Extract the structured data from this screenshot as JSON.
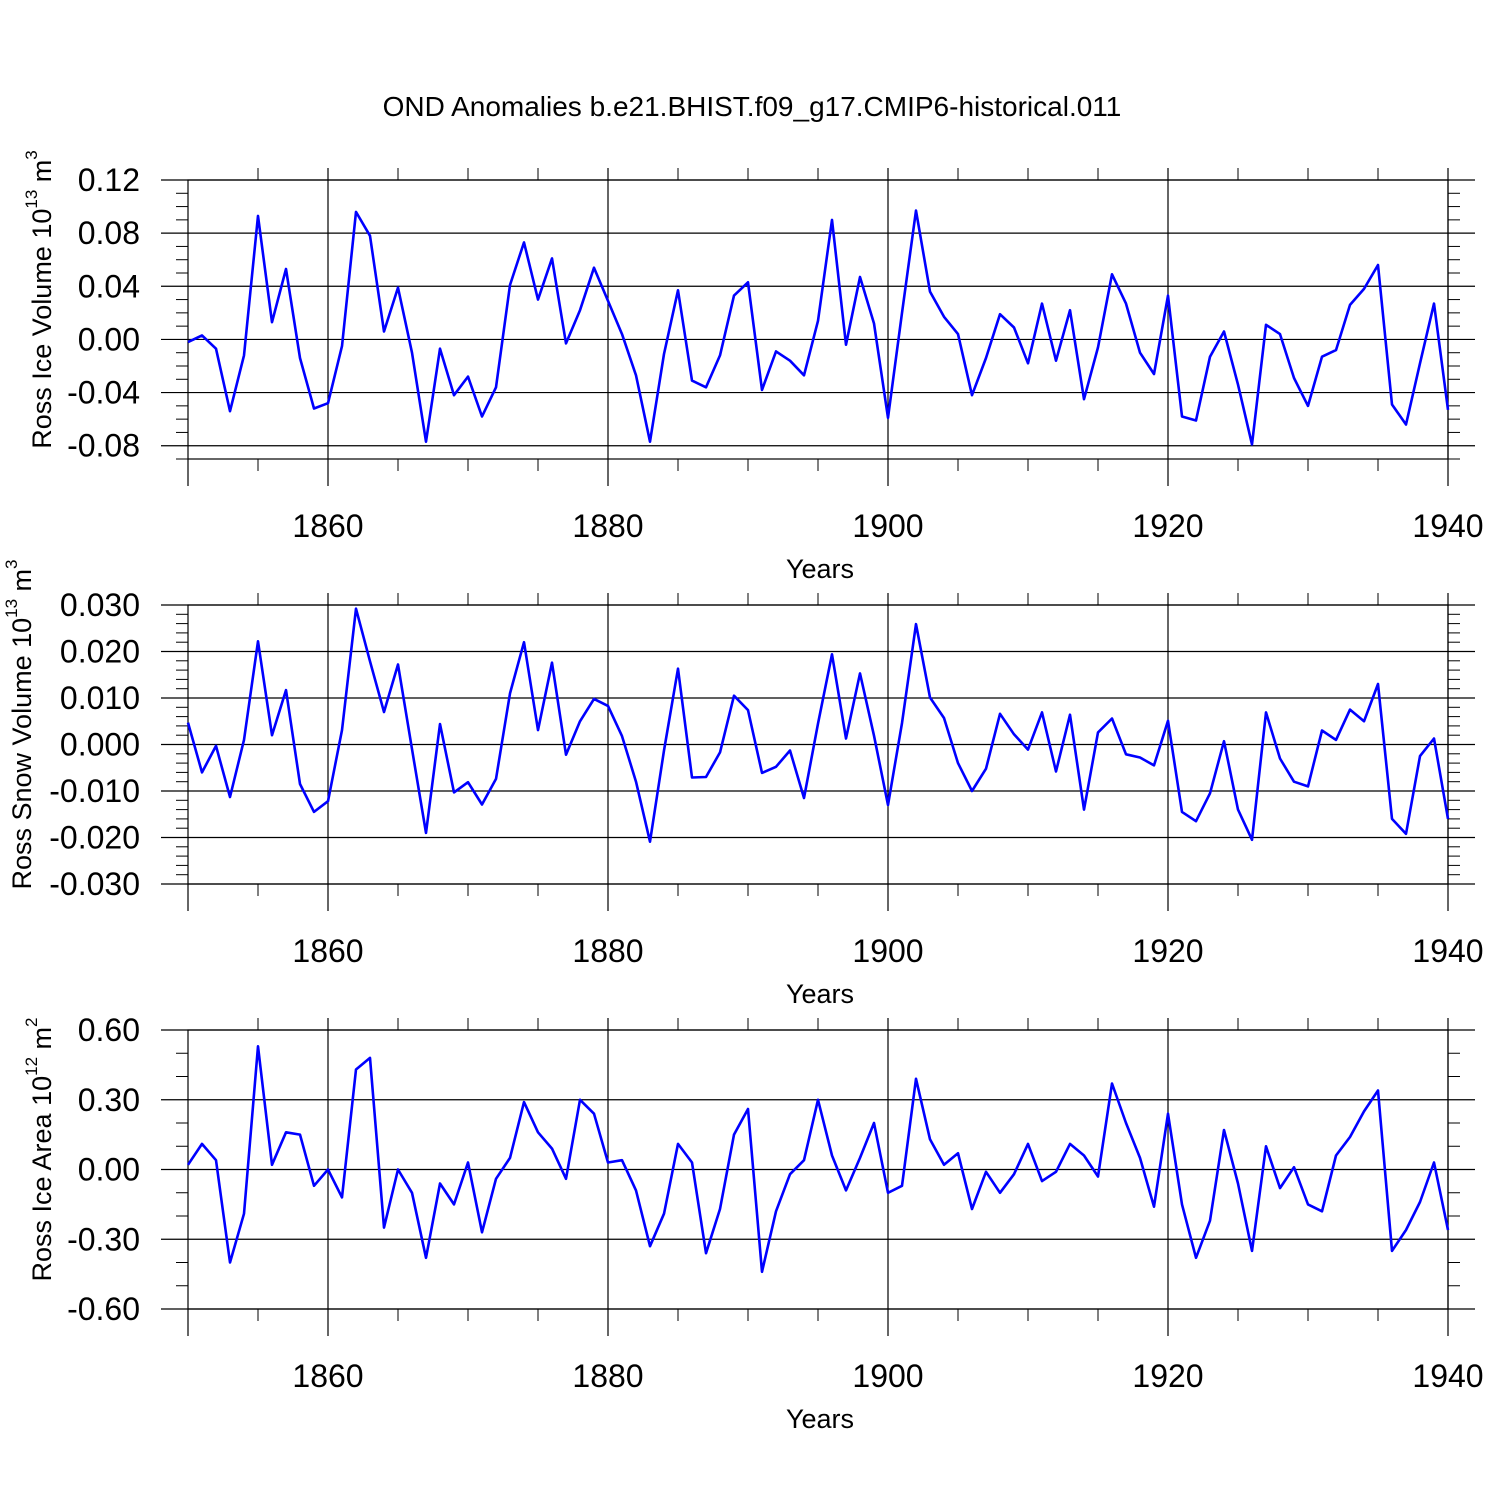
{
  "figure_title": "OND Anomalies b.e21.BHIST.f09_g17.CMIP6-historical.011",
  "chart_data": [
    {
      "type": "line",
      "name": "ice-volume",
      "ylabel": "Ross Ice Volume 10",
      "ylabel_exp": "13",
      "ylabel_unit": " m",
      "ylabel_unit_exp": "3",
      "xlabel": "Years",
      "xlim": [
        1850,
        1940
      ],
      "ylim": [
        -0.09,
        0.12
      ],
      "yticks": [
        -0.08,
        -0.04,
        0.0,
        0.04,
        0.08,
        0.12
      ],
      "ytick_labels": [
        "-0.08",
        "-0.04",
        "0.00",
        "0.04",
        "0.08",
        "0.12"
      ],
      "yminor_step": 0.01,
      "xticks": [
        1860,
        1880,
        1900,
        1920,
        1940
      ],
      "xtick_labels": [
        "1860",
        "1880",
        "1900",
        "1920",
        "1940"
      ],
      "color": "#0000ff",
      "x": [
        1850,
        1851,
        1852,
        1853,
        1854,
        1855,
        1856,
        1857,
        1858,
        1859,
        1860,
        1861,
        1862,
        1863,
        1864,
        1865,
        1866,
        1867,
        1868,
        1869,
        1870,
        1871,
        1872,
        1873,
        1874,
        1875,
        1876,
        1877,
        1878,
        1879,
        1880,
        1881,
        1882,
        1883,
        1884,
        1885,
        1886,
        1887,
        1888,
        1889,
        1890,
        1891,
        1892,
        1893,
        1894,
        1895,
        1896,
        1897,
        1898,
        1899,
        1900,
        1901,
        1902,
        1903,
        1904,
        1905,
        1906,
        1907,
        1908,
        1909,
        1910,
        1911,
        1912,
        1913,
        1914,
        1915,
        1916,
        1917,
        1918,
        1919,
        1920,
        1921,
        1922,
        1923,
        1924,
        1925,
        1926,
        1927,
        1928,
        1929,
        1930,
        1931,
        1932,
        1933,
        1934,
        1935,
        1936,
        1937,
        1938,
        1939,
        1940
      ],
      "values": [
        -0.002,
        0.003,
        -0.007,
        -0.054,
        -0.012,
        0.093,
        0.013,
        0.053,
        -0.014,
        -0.052,
        -0.048,
        -0.005,
        0.096,
        0.078,
        0.006,
        0.039,
        -0.01,
        -0.077,
        -0.007,
        -0.042,
        -0.028,
        -0.058,
        -0.036,
        0.041,
        0.073,
        0.03,
        0.061,
        -0.003,
        0.022,
        0.054,
        0.029,
        0.004,
        -0.027,
        -0.077,
        -0.011,
        0.037,
        -0.031,
        -0.036,
        -0.012,
        0.033,
        0.043,
        -0.038,
        -0.009,
        -0.016,
        -0.027,
        0.014,
        0.09,
        -0.004,
        0.047,
        0.012,
        -0.059,
        0.02,
        0.097,
        0.036,
        0.017,
        0.004,
        -0.042,
        -0.014,
        0.019,
        0.009,
        -0.018,
        0.027,
        -0.016,
        0.022,
        -0.045,
        -0.006,
        0.049,
        0.027,
        -0.01,
        -0.026,
        0.033,
        -0.058,
        -0.061,
        -0.013,
        0.006,
        -0.034,
        -0.079,
        0.011,
        0.004,
        -0.029,
        -0.05,
        -0.013,
        -0.008,
        0.026,
        0.038,
        0.056,
        -0.049,
        -0.064,
        -0.018,
        0.027,
        -0.053
      ]
    },
    {
      "type": "line",
      "name": "snow-volume",
      "ylabel": "Ross Snow Volume 10",
      "ylabel_exp": "13",
      "ylabel_unit": " m",
      "ylabel_unit_exp": "3",
      "xlabel": "Years",
      "xlim": [
        1850,
        1940
      ],
      "ylim": [
        -0.03,
        0.03
      ],
      "yticks": [
        -0.03,
        -0.02,
        -0.01,
        0.0,
        0.01,
        0.02,
        0.03
      ],
      "ytick_labels": [
        "-0.030",
        "-0.020",
        "-0.010",
        "0.000",
        "0.010",
        "0.020",
        "0.030"
      ],
      "yminor_step": 0.002,
      "xticks": [
        1860,
        1880,
        1900,
        1920,
        1940
      ],
      "xtick_labels": [
        "1860",
        "1880",
        "1900",
        "1920",
        "1940"
      ],
      "color": "#0000ff",
      "x": [
        1850,
        1851,
        1852,
        1853,
        1854,
        1855,
        1856,
        1857,
        1858,
        1859,
        1860,
        1861,
        1862,
        1863,
        1864,
        1865,
        1866,
        1867,
        1868,
        1869,
        1870,
        1871,
        1872,
        1873,
        1874,
        1875,
        1876,
        1877,
        1878,
        1879,
        1880,
        1881,
        1882,
        1883,
        1884,
        1885,
        1886,
        1887,
        1888,
        1889,
        1890,
        1891,
        1892,
        1893,
        1894,
        1895,
        1896,
        1897,
        1898,
        1899,
        1900,
        1901,
        1902,
        1903,
        1904,
        1905,
        1906,
        1907,
        1908,
        1909,
        1910,
        1911,
        1912,
        1913,
        1914,
        1915,
        1916,
        1917,
        1918,
        1919,
        1920,
        1921,
        1922,
        1923,
        1924,
        1925,
        1926,
        1927,
        1928,
        1929,
        1930,
        1931,
        1932,
        1933,
        1934,
        1935,
        1936,
        1937,
        1938,
        1939,
        1940
      ],
      "values": [
        0.0047,
        -0.006,
        -0.0003,
        -0.0113,
        0.001,
        0.0222,
        0.002,
        0.0117,
        -0.0085,
        -0.0145,
        -0.0122,
        0.0031,
        0.0292,
        0.0179,
        0.007,
        0.0172,
        -0.001,
        -0.019,
        0.0044,
        -0.0103,
        -0.0081,
        -0.0129,
        -0.0074,
        0.011,
        0.022,
        0.0031,
        0.0176,
        -0.0022,
        0.005,
        0.0098,
        0.0083,
        0.0018,
        -0.008,
        -0.0209,
        -0.0013,
        0.0163,
        -0.0071,
        -0.007,
        -0.0017,
        0.0105,
        0.0074,
        -0.0061,
        -0.0048,
        -0.0013,
        -0.0115,
        0.0045,
        0.0194,
        0.0013,
        0.0153,
        0.0019,
        -0.013,
        0.0046,
        0.0259,
        0.0101,
        0.0057,
        -0.004,
        -0.01,
        -0.0052,
        0.0066,
        0.0022,
        -0.0011,
        0.0069,
        -0.0058,
        0.0064,
        -0.014,
        0.0026,
        0.0056,
        -0.0021,
        -0.0028,
        -0.0045,
        0.0051,
        -0.0145,
        -0.0165,
        -0.0105,
        0.0007,
        -0.014,
        -0.0205,
        0.0069,
        -0.003,
        -0.008,
        -0.009,
        0.003,
        0.001,
        0.0075,
        0.005,
        0.013,
        -0.016,
        -0.0192,
        -0.0025,
        0.0013,
        -0.016
      ]
    },
    {
      "type": "line",
      "name": "ice-area",
      "ylabel": "Ross Ice Area 10",
      "ylabel_exp": "12",
      "ylabel_unit": " m",
      "ylabel_unit_exp": "2",
      "xlabel": "Years",
      "xlim": [
        1850,
        1940
      ],
      "ylim": [
        -0.6,
        0.6
      ],
      "yticks": [
        -0.6,
        -0.3,
        0.0,
        0.3,
        0.6
      ],
      "ytick_labels": [
        "-0.60",
        "-0.30",
        "0.00",
        "0.30",
        "0.60"
      ],
      "yminor_step": 0.1,
      "xticks": [
        1860,
        1880,
        1900,
        1920,
        1940
      ],
      "xtick_labels": [
        "1860",
        "1880",
        "1900",
        "1920",
        "1940"
      ],
      "color": "#0000ff",
      "x": [
        1850,
        1851,
        1852,
        1853,
        1854,
        1855,
        1856,
        1857,
        1858,
        1859,
        1860,
        1861,
        1862,
        1863,
        1864,
        1865,
        1866,
        1867,
        1868,
        1869,
        1870,
        1871,
        1872,
        1873,
        1874,
        1875,
        1876,
        1877,
        1878,
        1879,
        1880,
        1881,
        1882,
        1883,
        1884,
        1885,
        1886,
        1887,
        1888,
        1889,
        1890,
        1891,
        1892,
        1893,
        1894,
        1895,
        1896,
        1897,
        1898,
        1899,
        1900,
        1901,
        1902,
        1903,
        1904,
        1905,
        1906,
        1907,
        1908,
        1909,
        1910,
        1911,
        1912,
        1913,
        1914,
        1915,
        1916,
        1917,
        1918,
        1919,
        1920,
        1921,
        1922,
        1923,
        1924,
        1925,
        1926,
        1927,
        1928,
        1929,
        1930,
        1931,
        1932,
        1933,
        1934,
        1935,
        1936,
        1937,
        1938,
        1939,
        1940
      ],
      "values": [
        0.02,
        0.11,
        0.04,
        -0.4,
        -0.19,
        0.53,
        0.02,
        0.16,
        0.15,
        -0.07,
        0.0,
        -0.12,
        0.43,
        0.48,
        -0.25,
        0.0,
        -0.1,
        -0.38,
        -0.06,
        -0.15,
        0.03,
        -0.27,
        -0.04,
        0.05,
        0.29,
        0.16,
        0.09,
        -0.04,
        0.3,
        0.24,
        0.03,
        0.04,
        -0.09,
        -0.33,
        -0.19,
        0.11,
        0.03,
        -0.36,
        -0.17,
        0.15,
        0.26,
        -0.44,
        -0.18,
        -0.02,
        0.04,
        0.3,
        0.06,
        -0.09,
        0.05,
        0.2,
        -0.1,
        -0.07,
        0.39,
        0.13,
        0.02,
        0.07,
        -0.17,
        -0.01,
        -0.1,
        -0.02,
        0.11,
        -0.05,
        -0.01,
        0.11,
        0.06,
        -0.03,
        0.37,
        0.2,
        0.05,
        -0.16,
        0.24,
        -0.15,
        -0.38,
        -0.22,
        0.17,
        -0.06,
        -0.35,
        0.1,
        -0.08,
        0.01,
        -0.15,
        -0.18,
        0.06,
        0.14,
        0.25,
        0.34,
        -0.35,
        -0.26,
        -0.14,
        0.03,
        -0.26
      ]
    }
  ]
}
